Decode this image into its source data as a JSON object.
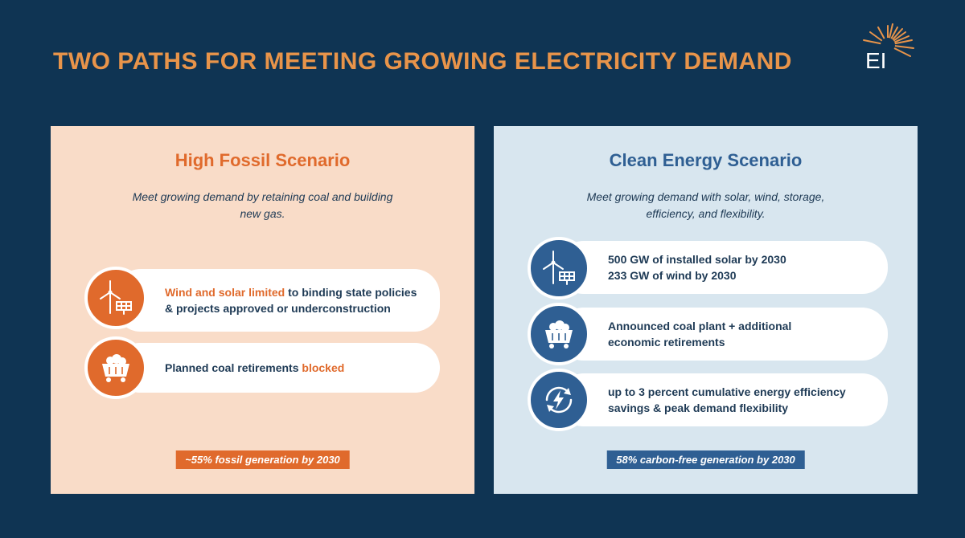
{
  "title": "TWO PATHS FOR MEETING GROWING ELECTRICITY DEMAND",
  "logo_text": "EI",
  "colors": {
    "background": "#0f3453",
    "accent_orange": "#e06a2c",
    "accent_blue": "#2f5f93",
    "fossil_panel": "#f9dcc8",
    "clean_panel": "#d8e6ef",
    "title": "#e8944a"
  },
  "fossil": {
    "heading": "High Fossil Scenario",
    "subtitle": "Meet growing demand by retaining coal and building new gas.",
    "items": [
      {
        "icon": "wind-solar-icon",
        "highlight": "Wind and solar limited",
        "text": " to binding state policies & projects approved or underconstruction"
      },
      {
        "icon": "coal-cart-icon",
        "text": "Planned coal retirements ",
        "highlight": "blocked"
      }
    ],
    "footer": "~55% fossil generation by 2030"
  },
  "clean": {
    "heading": "Clean Energy Scenario",
    "subtitle": "Meet growing demand with solar, wind, storage, efficiency, and flexibility.",
    "items": [
      {
        "icon": "wind-solar-icon",
        "line1": "500 GW of installed solar by 2030",
        "line2": "233 GW of wind by 2030"
      },
      {
        "icon": "coal-cart-icon",
        "text": "Announced coal plant + additional economic retirements"
      },
      {
        "icon": "energy-efficiency-icon",
        "text": "up to 3 percent cumulative energy efficiency savings & peak demand flexibility"
      }
    ],
    "footer": "58% carbon-free generation by 2030"
  }
}
